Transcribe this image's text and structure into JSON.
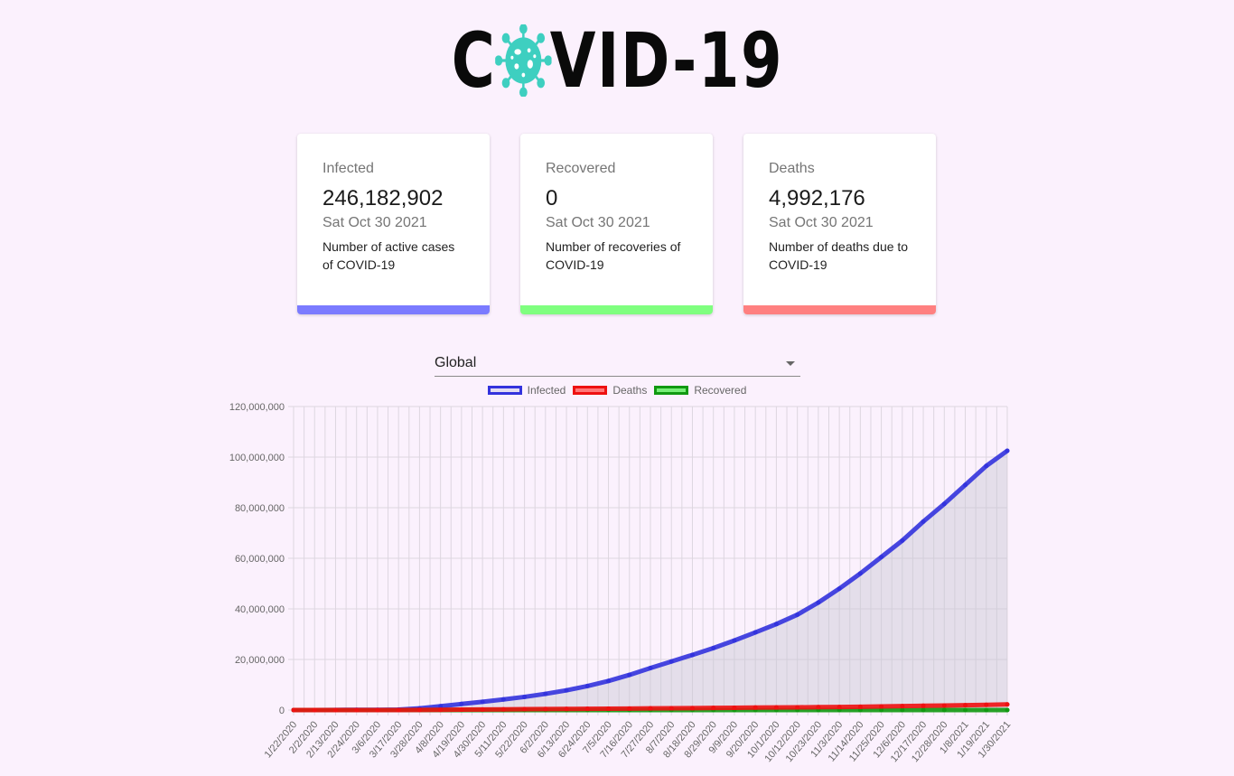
{
  "header": {
    "title_left": "C",
    "title_right": "VID-19",
    "virus_color": "#3ecfc0"
  },
  "cards": [
    {
      "title": "Infected",
      "value": "246,182,902",
      "date": "Sat Oct 30 2021",
      "description": "Number of active cases of COVID-19",
      "color": "#7b7bff"
    },
    {
      "title": "Recovered",
      "value": "0",
      "date": "Sat Oct 30 2021",
      "description": "Number of recoveries of COVID-19",
      "color": "#7fff7f"
    },
    {
      "title": "Deaths",
      "value": "4,992,176",
      "date": "Sat Oct 30 2021",
      "description": "Number of deaths due to COVID-19",
      "color": "#ff8080"
    }
  ],
  "country_select": {
    "value": "Global"
  },
  "chart_data": {
    "type": "line",
    "categories": [
      "1/22/2020",
      "2/2/2020",
      "2/13/2020",
      "2/24/2020",
      "3/6/2020",
      "3/17/2020",
      "3/28/2020",
      "4/8/2020",
      "4/19/2020",
      "4/30/2020",
      "5/11/2020",
      "5/22/2020",
      "6/2/2020",
      "6/13/2020",
      "6/24/2020",
      "7/5/2020",
      "7/16/2020",
      "7/27/2020",
      "8/7/2020",
      "8/18/2020",
      "8/29/2020",
      "9/9/2020",
      "9/20/2020",
      "10/1/2020",
      "10/12/2020",
      "10/23/2020",
      "11/3/2020",
      "11/14/2020",
      "11/25/2020",
      "12/6/2020",
      "12/17/2020",
      "12/28/2020",
      "1/8/2021",
      "1/19/2021",
      "1/30/2021"
    ],
    "series": [
      {
        "name": "Infected",
        "color": "#3333dd",
        "fill": "rgba(200,200,210,0.45)",
        "values": [
          555,
          17000,
          60000,
          80000,
          105000,
          200000,
          680000,
          1500000,
          2400000,
          3250000,
          4200000,
          5200000,
          6400000,
          7800000,
          9500000,
          11500000,
          13900000,
          16600000,
          19200000,
          21800000,
          24500000,
          27500000,
          30700000,
          34000000,
          37700000,
          42500000,
          48000000,
          54000000,
          60500000,
          67000000,
          74500000,
          81500000,
          89000000,
          96500000,
          102500000
        ]
      },
      {
        "name": "Deaths",
        "color": "#ee1111",
        "fill": "none",
        "values": [
          17,
          362,
          1370,
          2700,
          3500,
          8000,
          31000,
          88000,
          165000,
          234000,
          286000,
          340000,
          380000,
          427000,
          485000,
          535000,
          590000,
          650000,
          720000,
          780000,
          840000,
          900000,
          960000,
          1015000,
          1070000,
          1150000,
          1220000,
          1310000,
          1430000,
          1550000,
          1680000,
          1800000,
          1930000,
          2070000,
          2230000
        ]
      },
      {
        "name": "Recovered",
        "color": "#119911",
        "fill": "none",
        "values": [
          0,
          0,
          0,
          0,
          0,
          0,
          0,
          0,
          0,
          0,
          0,
          0,
          0,
          0,
          0,
          0,
          0,
          0,
          0,
          0,
          0,
          0,
          0,
          0,
          0,
          0,
          0,
          0,
          0,
          0,
          0,
          0,
          0,
          0,
          0
        ]
      }
    ],
    "yticks": [
      "0",
      "20,000,000",
      "40,000,000",
      "60,000,000",
      "80,000,000",
      "100,000,000",
      "120,000,000"
    ],
    "ylim": [
      0,
      120000000
    ],
    "grid": true,
    "legend": "top"
  }
}
